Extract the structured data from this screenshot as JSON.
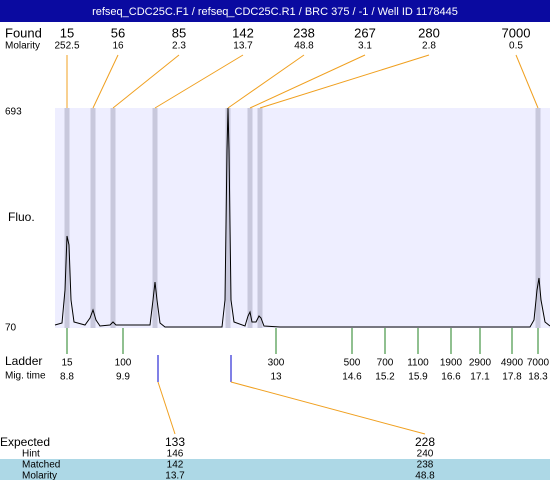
{
  "title": "refseq_CDC25C.F1 / refseq_CDC25C.R1 / BRC 375 / -1 / Well ID 1178445",
  "found": {
    "label": "Found",
    "molarity_label": "Molarity",
    "peaks": [
      {
        "size": 15,
        "molarity": 252.5
      },
      {
        "size": 56,
        "molarity": 16
      },
      {
        "size": 85,
        "molarity": 2.3
      },
      {
        "size": 142,
        "molarity": 13.7
      },
      {
        "size": 238,
        "molarity": 48.8
      },
      {
        "size": 267,
        "molarity": 3.1
      },
      {
        "size": 280,
        "molarity": 2.8
      },
      {
        "size": 7000,
        "molarity": 0.5
      }
    ]
  },
  "fluo": {
    "label": "Fluo.",
    "max": 693,
    "min": 70
  },
  "ladder": {
    "label": "Ladder",
    "time_label": "Mig. time",
    "peaks": [
      {
        "size": 15,
        "time": 8.8
      },
      {
        "size": 100,
        "time": 9.9
      },
      {
        "size": 300,
        "time": 13
      },
      {
        "size": 500,
        "time": 14.6
      },
      {
        "size": 700,
        "time": 15.2
      },
      {
        "size": 1100,
        "time": 15.9
      },
      {
        "size": 1900,
        "time": 16.6
      },
      {
        "size": 2900,
        "time": 17.1
      },
      {
        "size": 4900,
        "time": 17.8
      },
      {
        "size": 7000,
        "time": 18.3
      }
    ]
  },
  "expected": {
    "labels": [
      "Expected",
      "Hint",
      "Matched",
      "Molarity"
    ],
    "columns": [
      {
        "expected": 133,
        "hint": 146,
        "matched": 142,
        "molarity": 13.7
      },
      {
        "expected": 228,
        "hint": 240,
        "matched": 238,
        "molarity": 48.8
      }
    ]
  }
}
